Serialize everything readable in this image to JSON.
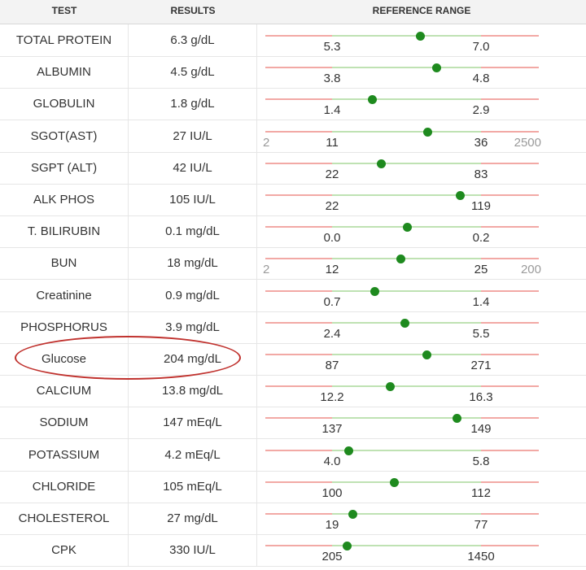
{
  "headers": {
    "test": "TEST",
    "results": "RESULTS",
    "range": "REFERENCE RANGE"
  },
  "rows": [
    {
      "test": "TOTAL PROTEIN",
      "result": "6.3 g/dL",
      "low": "5.3",
      "high": "7.0",
      "value": 6.3
    },
    {
      "test": "ALBUMIN",
      "result": "4.5 g/dL",
      "low": "3.8",
      "high": "4.8",
      "value": 4.5
    },
    {
      "test": "GLOBULIN",
      "result": "1.8 g/dL",
      "low": "1.4",
      "high": "2.9",
      "value": 1.8
    },
    {
      "test": "SGOT(AST)",
      "result": "27 IU/L",
      "low": "11",
      "high": "36",
      "value": 27,
      "min": "2",
      "max": "2500"
    },
    {
      "test": "SGPT (ALT)",
      "result": "42 IU/L",
      "low": "22",
      "high": "83",
      "value": 42
    },
    {
      "test": "ALK PHOS",
      "result": "105 IU/L",
      "low": "22",
      "high": "119",
      "value": 105
    },
    {
      "test": "T. BILIRUBIN",
      "result": "0.1 mg/dL",
      "low": "0.0",
      "high": "0.2",
      "value": 0.1
    },
    {
      "test": "BUN",
      "result": "18 mg/dL",
      "low": "12",
      "high": "25",
      "value": 18,
      "min": "2",
      "max": "200"
    },
    {
      "test": "Creatinine",
      "result": "0.9 mg/dL",
      "low": "0.7",
      "high": "1.4",
      "value": 0.9
    },
    {
      "test": "PHOSPHORUS",
      "result": "3.9 mg/dL",
      "low": "2.4",
      "high": "5.5",
      "value": 3.9
    },
    {
      "test": "Glucose",
      "result": "204 mg/dL",
      "low": "87",
      "high": "271",
      "value": 204,
      "highlighted": true
    },
    {
      "test": "CALCIUM",
      "result": "13.8 mg/dL",
      "low": "12.2",
      "high": "16.3",
      "value": 13.8
    },
    {
      "test": "SODIUM",
      "result": "147 mEq/L",
      "low": "137",
      "high": "149",
      "value": 147
    },
    {
      "test": "POTASSIUM",
      "result": "4.2 mEq/L",
      "low": "4.0",
      "high": "5.8",
      "value": 4.2
    },
    {
      "test": "CHLORIDE",
      "result": "105 mEq/L",
      "low": "100",
      "high": "112",
      "value": 105
    },
    {
      "test": "CHOLESTEROL",
      "result": "27 mg/dL",
      "low": "19",
      "high": "77",
      "value": 27
    },
    {
      "test": "CPK",
      "result": "330 IU/L",
      "low": "205",
      "high": "1450",
      "value": 330
    }
  ],
  "colors": {
    "out_of_range": "#f2a9a5",
    "in_range": "#bfe2b3",
    "marker": "#1e8a1e",
    "annotation": "#c0322e"
  }
}
